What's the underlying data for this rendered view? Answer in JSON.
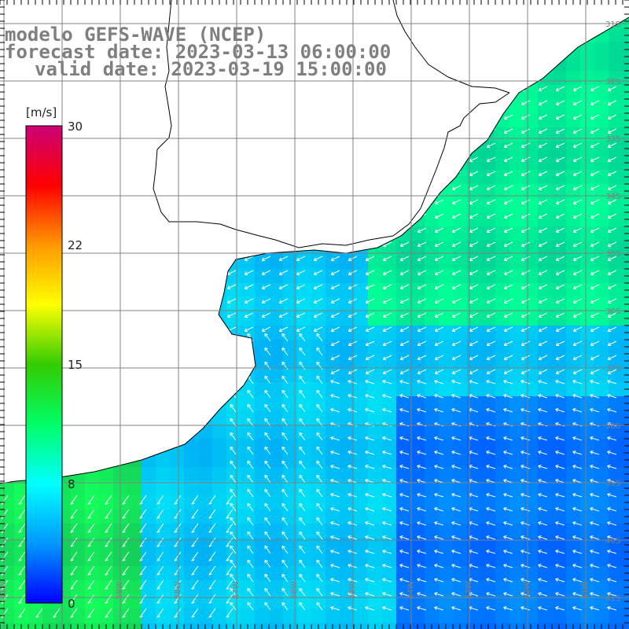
{
  "title": {
    "line1": "modelo GEFS-WAVE (NCEP)",
    "line2": "forecast date: 2023-03-13 06:00:00",
    "line3": "valid date: 2023-03-19 15:00:00"
  },
  "colorbar": {
    "units": "[m/s]",
    "min": 0,
    "max": 30,
    "ticks": [
      {
        "value": 30,
        "label": "30"
      },
      {
        "value": 22,
        "label": "22"
      },
      {
        "value": 15,
        "label": "15"
      },
      {
        "value": 8,
        "label": "8"
      },
      {
        "value": 0,
        "label": "0"
      }
    ],
    "colors": [
      "#0000ff",
      "#0099ff",
      "#00ffff",
      "#00ff66",
      "#33cc00",
      "#ffff00",
      "#ff9900",
      "#ff0000",
      "#cc0077"
    ]
  },
  "map": {
    "lat_labels": [
      "31S",
      "32S",
      "33S",
      "34S",
      "35S",
      "36S",
      "37S",
      "38S",
      "39S",
      "40S",
      "41S"
    ],
    "lon_labels": [
      "61W",
      "60W",
      "59W",
      "58W",
      "57W",
      "56W",
      "55W",
      "54W",
      "53W",
      "52W",
      "51W"
    ],
    "colors": {
      "land": "#ffffff",
      "coast": "#000000",
      "grid": "#808080",
      "arrow": "#ffffff"
    }
  }
}
